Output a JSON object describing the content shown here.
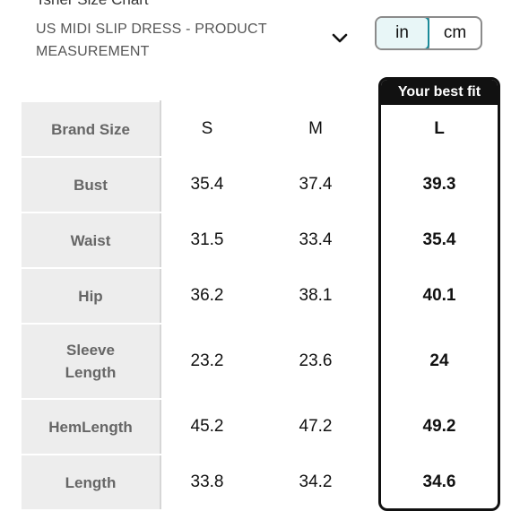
{
  "header": {
    "title": "Tsher Size Chart",
    "subtitle": "US MIDI SLIP DRESS - PRODUCT MEASUREMENT",
    "dropdown_icon": "chevron-down-icon"
  },
  "unit_toggle": {
    "options": [
      "in",
      "cm"
    ],
    "selected": "in"
  },
  "best_fit": {
    "label": "Your best fit",
    "size": "L"
  },
  "table": {
    "columns": [
      "Brand Size",
      "S",
      "M",
      "L"
    ],
    "rows": [
      {
        "label": "Bust",
        "values": [
          "35.4",
          "37.4",
          "39.3"
        ]
      },
      {
        "label": "Waist",
        "values": [
          "31.5",
          "33.4",
          "35.4"
        ]
      },
      {
        "label": "Hip",
        "values": [
          "36.2",
          "38.1",
          "40.1"
        ]
      },
      {
        "label": "Sleeve Length",
        "values": [
          "23.2",
          "23.6",
          "24"
        ]
      },
      {
        "label": "HemLength",
        "values": [
          "45.2",
          "47.2",
          "49.2"
        ]
      },
      {
        "label": "Length",
        "values": [
          "33.8",
          "34.2",
          "34.6"
        ]
      }
    ]
  },
  "colors": {
    "accent": "#1a8a99",
    "label_bg": "#ededed",
    "best_fit_bg": "#111111"
  }
}
